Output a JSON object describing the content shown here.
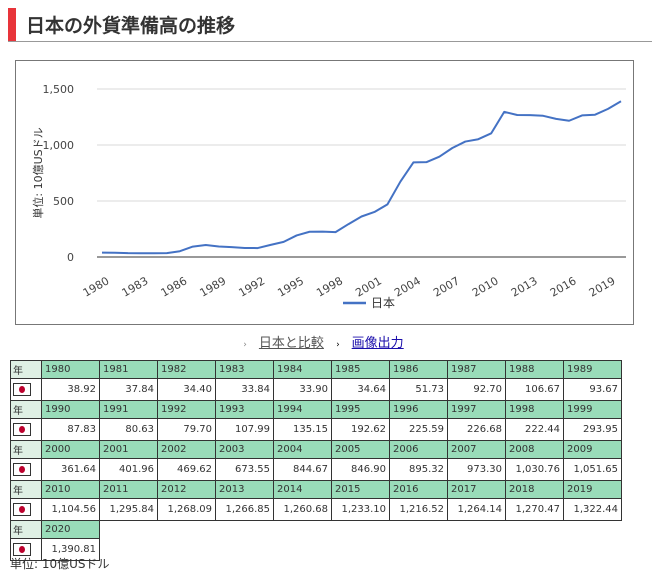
{
  "title": "日本の外貨準備高の推移",
  "chart_data": {
    "type": "line",
    "ylabel": "単位: 10億USドル",
    "ylim": [
      0,
      1500
    ],
    "yticks": [
      "0",
      "500",
      "1,000",
      "1,500"
    ],
    "ytick_values": [
      0,
      500,
      1000,
      1500
    ],
    "xtick_labels": [
      "1980",
      "1983",
      "1986",
      "1989",
      "1992",
      "1995",
      "1998",
      "2001",
      "2004",
      "2007",
      "2010",
      "2013",
      "2016",
      "2019"
    ],
    "legend_position": "bottom",
    "grid": true,
    "series": [
      {
        "name": "日本",
        "color": "#4472c4",
        "x": [
          1980,
          1981,
          1982,
          1983,
          1984,
          1985,
          1986,
          1987,
          1988,
          1989,
          1990,
          1991,
          1992,
          1993,
          1994,
          1995,
          1996,
          1997,
          1998,
          1999,
          2000,
          2001,
          2002,
          2003,
          2004,
          2005,
          2006,
          2007,
          2008,
          2009,
          2010,
          2011,
          2012,
          2013,
          2014,
          2015,
          2016,
          2017,
          2018,
          2019,
          2020
        ],
        "values": [
          38.92,
          37.84,
          34.4,
          33.84,
          33.9,
          34.64,
          51.73,
          92.7,
          106.67,
          93.67,
          87.83,
          80.63,
          79.7,
          107.99,
          135.15,
          192.62,
          225.59,
          226.68,
          222.44,
          293.95,
          361.64,
          401.96,
          469.62,
          673.55,
          844.67,
          846.9,
          895.32,
          973.3,
          1030.76,
          1051.65,
          1104.56,
          1295.84,
          1268.09,
          1266.85,
          1260.68,
          1233.1,
          1216.52,
          1264.14,
          1270.47,
          1322.44,
          1390.81
        ]
      }
    ]
  },
  "links": {
    "compare": "日本と比較",
    "export": "画像出力"
  },
  "table": {
    "year_label": "年",
    "rows": [
      {
        "years": [
          "1980",
          "1981",
          "1982",
          "1983",
          "1984",
          "1985",
          "1986",
          "1987",
          "1988",
          "1989"
        ],
        "values": [
          "38.92",
          "37.84",
          "34.40",
          "33.84",
          "33.90",
          "34.64",
          "51.73",
          "92.70",
          "106.67",
          "93.67"
        ]
      },
      {
        "years": [
          "1990",
          "1991",
          "1992",
          "1993",
          "1994",
          "1995",
          "1996",
          "1997",
          "1998",
          "1999"
        ],
        "values": [
          "87.83",
          "80.63",
          "79.70",
          "107.99",
          "135.15",
          "192.62",
          "225.59",
          "226.68",
          "222.44",
          "293.95"
        ]
      },
      {
        "years": [
          "2000",
          "2001",
          "2002",
          "2003",
          "2004",
          "2005",
          "2006",
          "2007",
          "2008",
          "2009"
        ],
        "values": [
          "361.64",
          "401.96",
          "469.62",
          "673.55",
          "844.67",
          "846.90",
          "895.32",
          "973.30",
          "1,030.76",
          "1,051.65"
        ]
      },
      {
        "years": [
          "2010",
          "2011",
          "2012",
          "2013",
          "2014",
          "2015",
          "2016",
          "2017",
          "2018",
          "2019"
        ],
        "values": [
          "1,104.56",
          "1,295.84",
          "1,268.09",
          "1,266.85",
          "1,260.68",
          "1,233.10",
          "1,216.52",
          "1,264.14",
          "1,270.47",
          "1,322.44"
        ]
      },
      {
        "years": [
          "2020"
        ],
        "values": [
          "1,390.81"
        ]
      }
    ]
  },
  "unit": "単位: 10億USドル"
}
